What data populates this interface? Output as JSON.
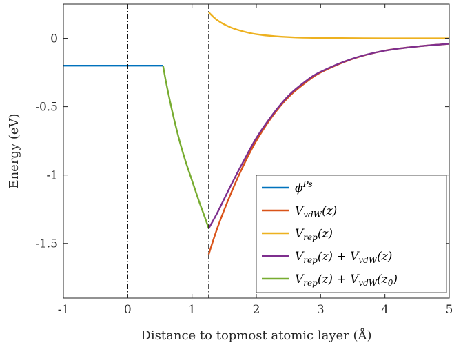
{
  "chart_data": {
    "type": "line",
    "title": "",
    "xlabel": "Distance to topmost atomic layer (Å)",
    "ylabel": "Energy (eV)",
    "xlim": [
      -1,
      5
    ],
    "ylim": [
      -1.9,
      0.25
    ],
    "xticks": [
      -1,
      0,
      1,
      2,
      3,
      4,
      5
    ],
    "xtick_labels": [
      "-1",
      "0",
      "1",
      "2",
      "3",
      "4",
      "5"
    ],
    "yticks": [
      0,
      -0.5,
      -1,
      -1.5
    ],
    "ytick_labels": [
      "0",
      "-0.5",
      "-1",
      "-1.5"
    ],
    "grid": false,
    "legend_position": "bottom-right",
    "vlines": [
      0,
      1.26
    ],
    "series": [
      {
        "name": "ϕ^Ps",
        "color": "#0072BD",
        "points": [
          [
            -1,
            -0.2
          ],
          [
            0.55,
            -0.2
          ]
        ]
      },
      {
        "name": "V_vdW(z)",
        "color": "#D95319",
        "points": [
          [
            1.26,
            -1.58
          ],
          [
            1.4,
            -1.38
          ],
          [
            1.6,
            -1.14
          ],
          [
            1.8,
            -0.93
          ],
          [
            2.0,
            -0.75
          ],
          [
            2.25,
            -0.57
          ],
          [
            2.5,
            -0.43
          ],
          [
            2.75,
            -0.33
          ],
          [
            3.0,
            -0.25
          ],
          [
            3.5,
            -0.15
          ],
          [
            4.0,
            -0.09
          ],
          [
            4.5,
            -0.06
          ],
          [
            5.0,
            -0.04
          ]
        ]
      },
      {
        "name": "V_rep(z)",
        "color": "#EDB120",
        "points": [
          [
            1.26,
            0.19
          ],
          [
            1.4,
            0.13
          ],
          [
            1.6,
            0.08
          ],
          [
            1.8,
            0.05
          ],
          [
            2.0,
            0.03
          ],
          [
            2.3,
            0.015
          ],
          [
            2.6,
            0.007
          ],
          [
            3.0,
            0.003
          ],
          [
            3.5,
            0.001
          ],
          [
            4.0,
            0.0
          ],
          [
            5.0,
            0.0
          ]
        ]
      },
      {
        "name": "V_rep(z) + V_vdW(z)",
        "color": "#7E2F8E",
        "points": [
          [
            1.26,
            -1.39
          ],
          [
            1.4,
            -1.27
          ],
          [
            1.6,
            -1.08
          ],
          [
            1.8,
            -0.9
          ],
          [
            2.0,
            -0.73
          ],
          [
            2.25,
            -0.56
          ],
          [
            2.5,
            -0.42
          ],
          [
            2.75,
            -0.32
          ],
          [
            3.0,
            -0.245
          ],
          [
            3.5,
            -0.148
          ],
          [
            4.0,
            -0.09
          ],
          [
            4.5,
            -0.06
          ],
          [
            5.0,
            -0.04
          ]
        ]
      },
      {
        "name": "V_rep(z) + V_vdW(z_0)",
        "color": "#77AC30",
        "points": [
          [
            0.55,
            -0.2
          ],
          [
            0.6,
            -0.33
          ],
          [
            0.7,
            -0.55
          ],
          [
            0.8,
            -0.74
          ],
          [
            0.9,
            -0.9
          ],
          [
            1.0,
            -1.04
          ],
          [
            1.1,
            -1.18
          ],
          [
            1.2,
            -1.31
          ],
          [
            1.26,
            -1.39
          ]
        ]
      }
    ]
  }
}
